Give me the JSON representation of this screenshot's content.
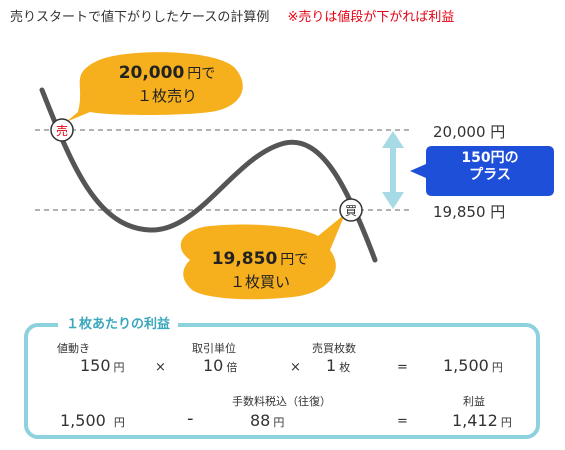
{
  "header": {
    "title": "売りスタートで値下がりしたケースの計算例",
    "note": "※売りは値段が下がれば利益"
  },
  "markers": {
    "sell": "売",
    "buy": "買"
  },
  "bubbles": {
    "sell": {
      "price": "20,000",
      "yen": "円で",
      "line2": "１枚売り"
    },
    "buy": {
      "price": "19,850",
      "yen": "円で",
      "line2": "１枚買い"
    }
  },
  "prices": {
    "high": "20,000 円",
    "low": "19,850 円"
  },
  "profit_tag": {
    "line1": "150円の",
    "line2": "プラス"
  },
  "colors": {
    "bubble": "#f6b01e",
    "curve": "#555555",
    "arrow": "#a6dbe6",
    "tag": "#1d4fd8",
    "panel_border": "#8cd1dd",
    "accent_red": "#e60012"
  },
  "panel": {
    "title": "１枚あたりの利益",
    "row1": {
      "labels": {
        "price_move": "値動き",
        "unit": "取引単位",
        "lots": "売買枚数"
      },
      "price_move": "150",
      "price_move_unit": "円",
      "times1": "×",
      "unit_value": "10",
      "unit_unit": "倍",
      "times2": "×",
      "lots": "1",
      "lots_unit": "枚",
      "equals": "=",
      "result": "1,500",
      "result_unit": "円"
    },
    "row2": {
      "labels": {
        "fee": "手数料税込（往復）",
        "profit": "利益"
      },
      "gross": "1,500",
      "gross_unit": "円",
      "minus": "-",
      "fee": "88",
      "fee_unit": "円",
      "equals": "=",
      "profit": "1,412",
      "profit_unit": "円"
    }
  }
}
